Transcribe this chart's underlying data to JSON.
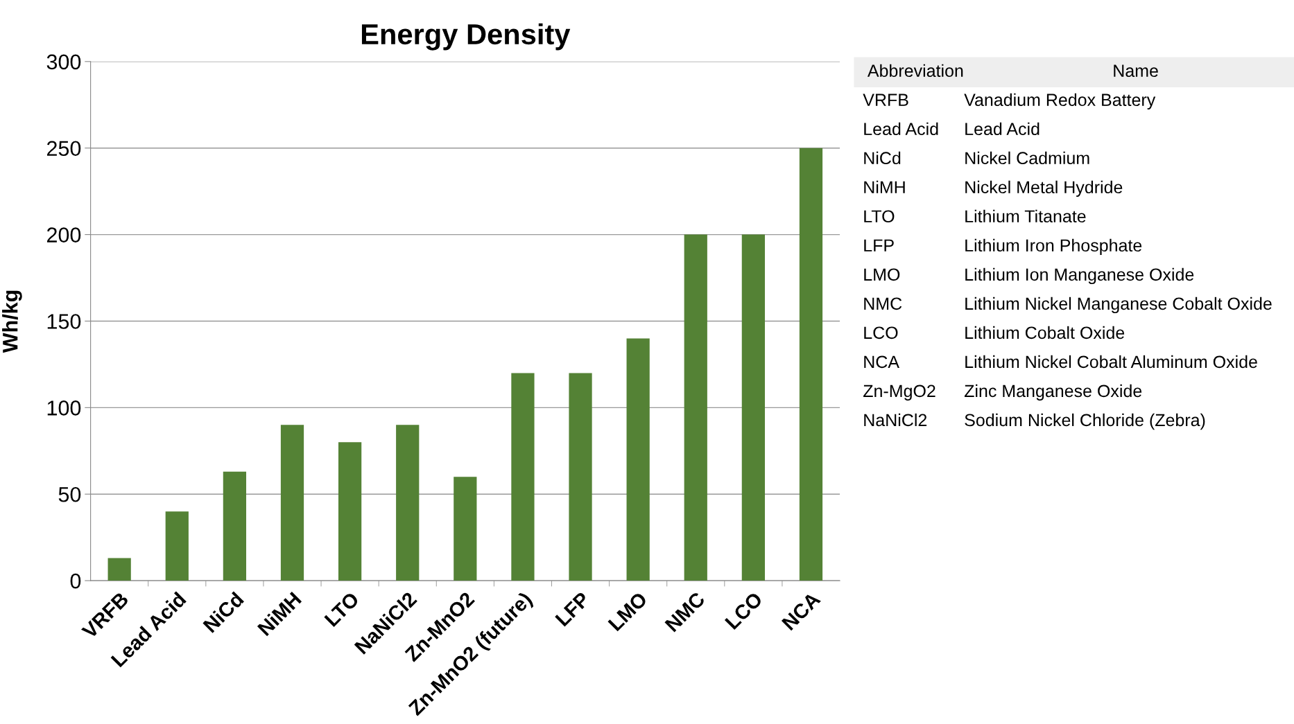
{
  "chart_data": [
    {
      "type": "bar",
      "title": "Energy Density",
      "ylabel": "Wh/kg",
      "categories": [
        "VRFB",
        "Lead Acid",
        "NiCd",
        "NiMH",
        "LTO",
        "NaNiCl2",
        "Zn-MnO2",
        "Zn-MnO2 (future)",
        "LFP",
        "LMO",
        "NMC",
        "LCO",
        "NCA"
      ],
      "values": [
        13,
        40,
        63,
        90,
        80,
        90,
        60,
        120,
        120,
        140,
        200,
        200,
        250
      ],
      "color": "#548235",
      "ylim": [
        0,
        300
      ],
      "yticks": [
        0,
        50,
        100,
        150,
        200,
        250,
        300
      ],
      "grid": "y"
    },
    {
      "type": "other",
      "categories": [
        "Abbreviation",
        "Name"
      ],
      "annotations": [
        "VRFB",
        "Vanadium Redox Battery",
        "Lead Acid",
        "Lead Acid",
        "NiCd",
        "Nickel Cadmium",
        "NiMH",
        "Nickel Metal Hydride",
        "LTO",
        "Lithium Titanate",
        "LFP",
        "Lithium Iron Phosphate",
        "LMO",
        "Lithium Ion Manganese Oxide",
        "NMC",
        "Lithium Nickel Manganese Cobalt Oxide",
        "LCO",
        "Lithium Cobalt Oxide",
        "NCA",
        "Lithium Nickel Cobalt Aluminum Oxide",
        "Zn-MgO2",
        "Zinc Manganese Oxide",
        "NaNiCl2",
        "Sodium Nickel Chloride (Zebra)"
      ]
    }
  ]
}
